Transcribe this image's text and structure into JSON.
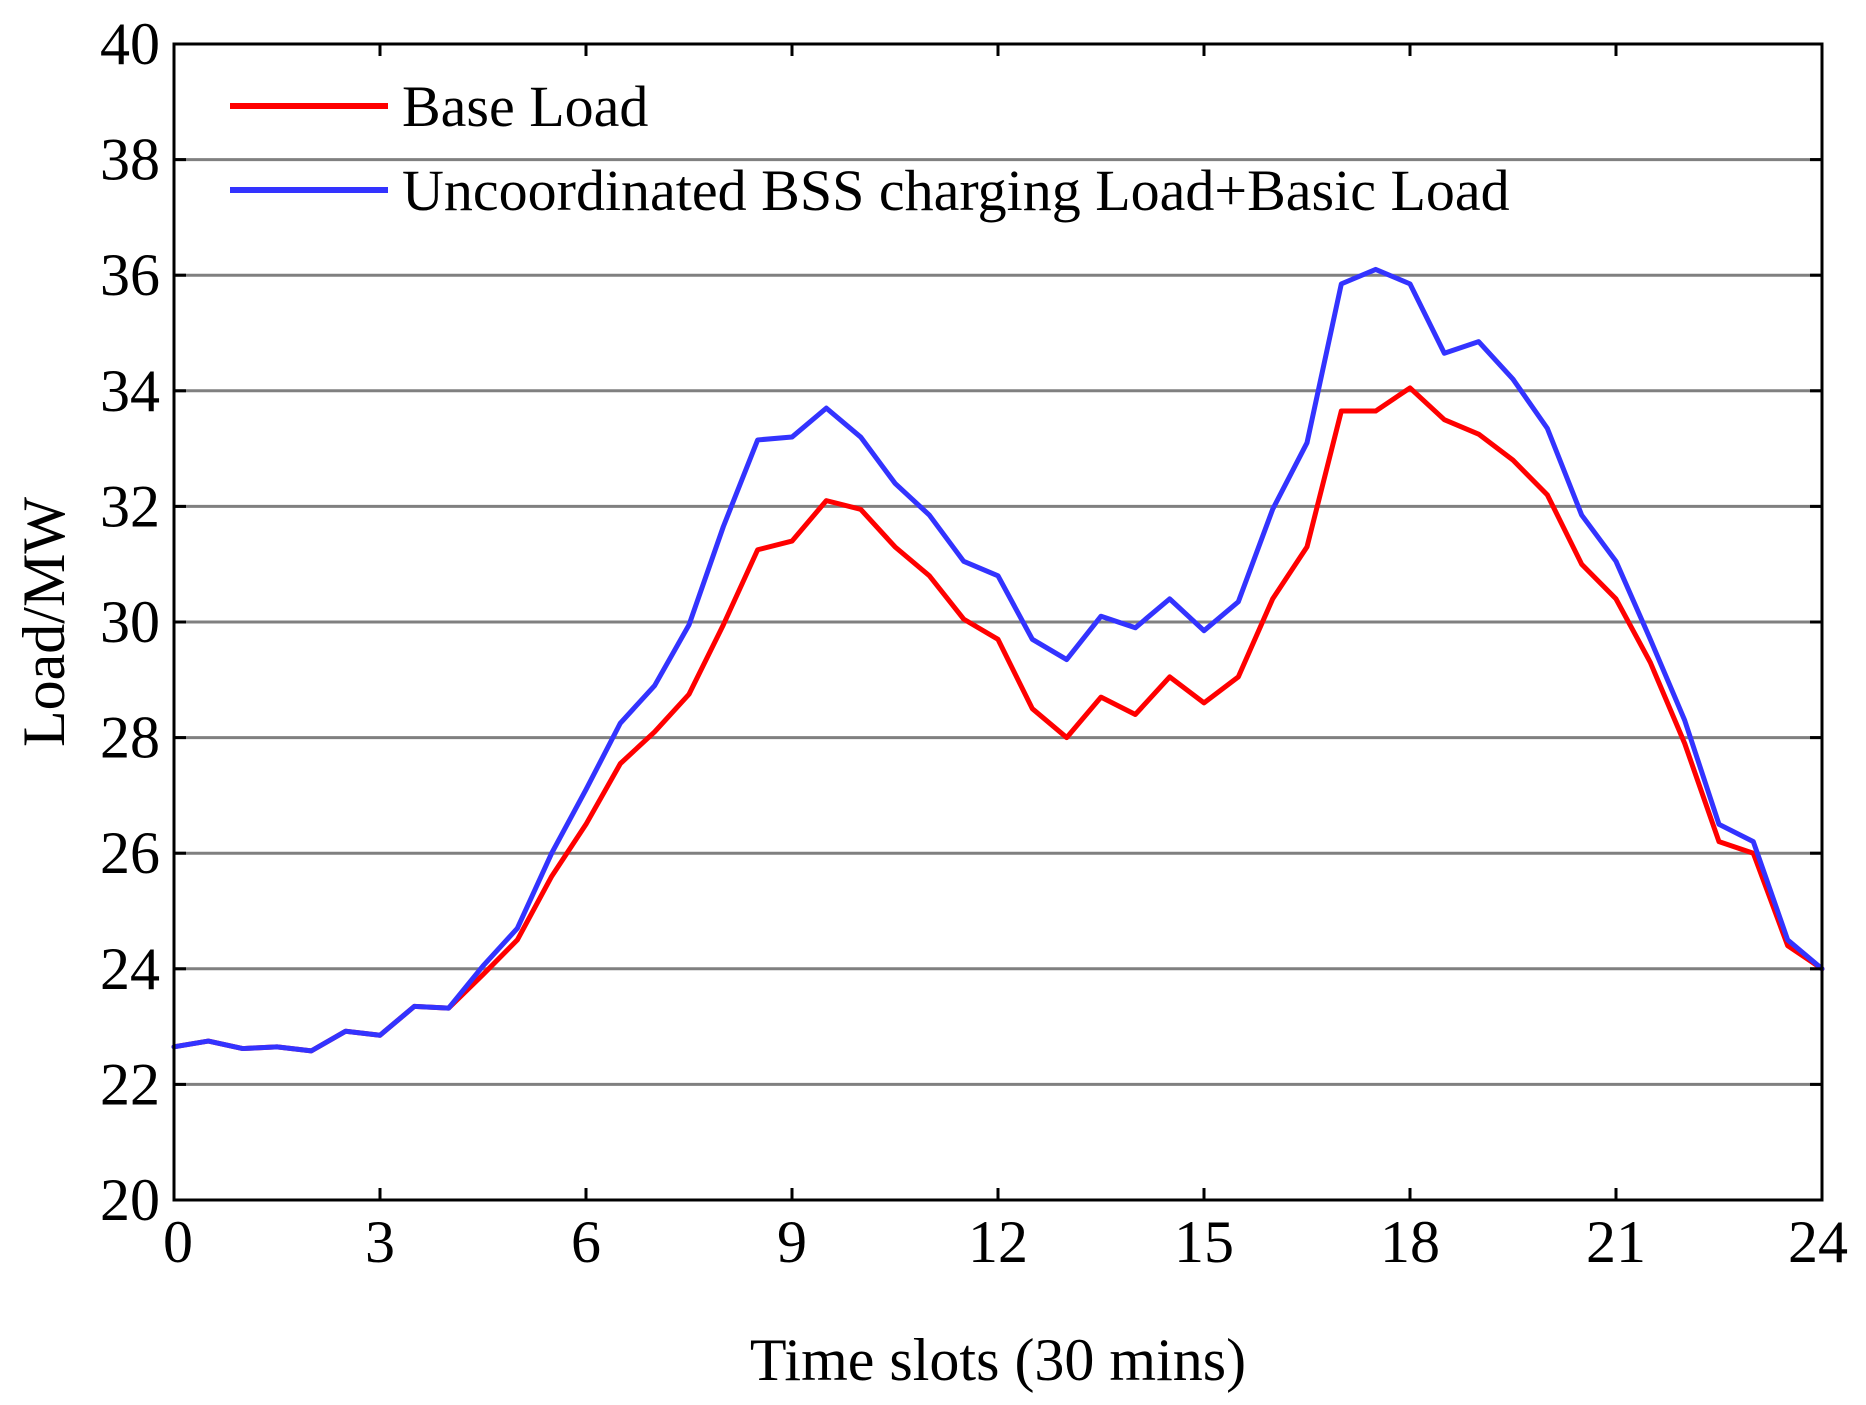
{
  "chart_data": {
    "type": "line",
    "title": "",
    "xlabel": "Time slots (30 mins)",
    "ylabel": "Load/MW",
    "xlim": [
      0,
      24
    ],
    "ylim": [
      20,
      40
    ],
    "xticks": [
      "0",
      "3",
      "6",
      "9",
      "12",
      "15",
      "18",
      "21",
      "24"
    ],
    "yticks": [
      "20",
      "22",
      "24",
      "26",
      "28",
      "30",
      "32",
      "34",
      "36",
      "38",
      "40"
    ],
    "grid": "horizontal",
    "legend_position": "top-left",
    "x": [
      0,
      0.5,
      1,
      1.5,
      2,
      2.5,
      3,
      3.5,
      4,
      4.5,
      5,
      5.5,
      6,
      6.5,
      7,
      7.5,
      8,
      8.5,
      9,
      9.5,
      10,
      10.5,
      11,
      11.5,
      12,
      12.5,
      13,
      13.5,
      14,
      14.5,
      15,
      15.5,
      16,
      16.5,
      17,
      17.5,
      18,
      18.5,
      19,
      19.5,
      20,
      20.5,
      21,
      21.5,
      22,
      22.5,
      23,
      23.5,
      24
    ],
    "series": [
      {
        "name": "Base Load",
        "color": "#ff0000",
        "values": [
          22.65,
          22.75,
          22.62,
          22.65,
          22.58,
          22.92,
          22.85,
          23.35,
          23.32,
          23.9,
          24.5,
          25.6,
          26.5,
          27.55,
          28.1,
          28.75,
          29.95,
          31.25,
          31.4,
          32.1,
          31.95,
          31.3,
          30.8,
          30.05,
          29.7,
          28.5,
          28.0,
          28.7,
          28.4,
          29.05,
          28.6,
          29.05,
          30.4,
          31.3,
          33.65,
          33.65,
          34.05,
          33.5,
          33.25,
          32.8,
          32.2,
          31.0,
          30.4,
          29.3,
          27.9,
          26.2,
          26.0,
          24.4,
          24.0
        ]
      },
      {
        "name": "Uncoordinated BSS charging Load+Basic Load",
        "color": "#3333ff",
        "values": [
          22.65,
          22.75,
          22.62,
          22.65,
          22.58,
          22.92,
          22.85,
          23.35,
          23.32,
          24.05,
          24.7,
          26.0,
          27.1,
          28.25,
          28.9,
          29.95,
          31.65,
          33.15,
          33.2,
          33.7,
          33.2,
          32.4,
          31.85,
          31.05,
          30.8,
          29.7,
          29.35,
          30.1,
          29.9,
          30.4,
          29.85,
          30.35,
          31.95,
          33.1,
          35.85,
          36.1,
          35.85,
          34.65,
          34.85,
          34.2,
          33.35,
          31.85,
          31.05,
          29.7,
          28.3,
          26.5,
          26.2,
          24.5,
          24.0
        ]
      }
    ]
  }
}
